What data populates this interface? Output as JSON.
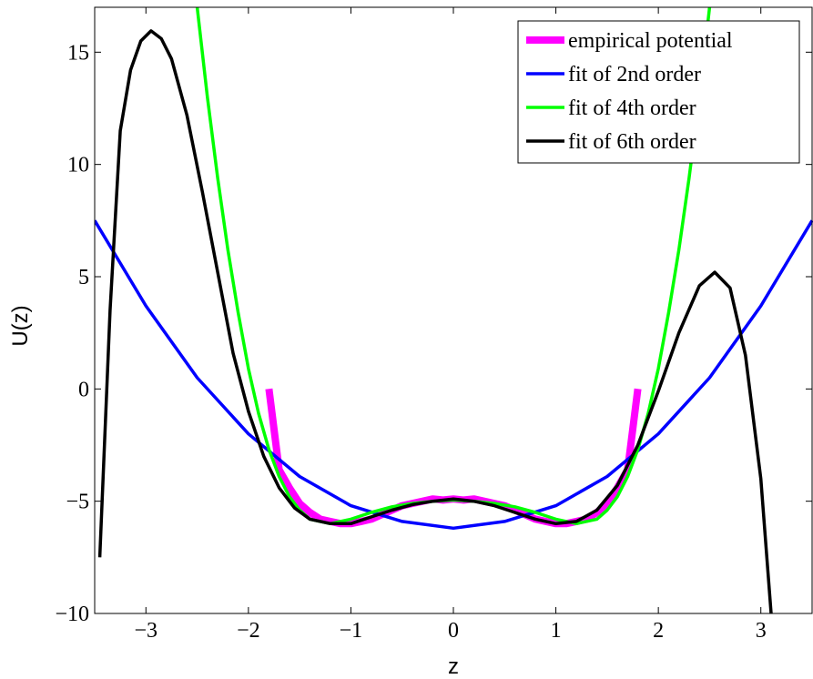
{
  "chart_data": {
    "type": "line",
    "xlabel": "z",
    "ylabel": "U(z)",
    "xlim": [
      -3.5,
      3.5
    ],
    "ylim": [
      -10,
      17
    ],
    "xticks": [
      -3,
      -2,
      -1,
      0,
      1,
      2,
      3
    ],
    "xtick_labels": [
      "−3",
      "−2",
      "−1",
      "0",
      "1",
      "2",
      "3"
    ],
    "yticks": [
      -10,
      -5,
      0,
      5,
      10,
      15
    ],
    "ytick_labels": [
      "−10",
      "−5",
      "0",
      "5",
      "10",
      "15"
    ],
    "grid": false,
    "legend_position": "top-right",
    "series": [
      {
        "name": "empirical potential",
        "color": "#ff00ff",
        "x": [
          -1.8,
          -1.7,
          -1.6,
          -1.5,
          -1.4,
          -1.3,
          -1.2,
          -1.1,
          -1.0,
          -0.9,
          -0.8,
          -0.7,
          -0.6,
          -0.5,
          -0.4,
          -0.3,
          -0.2,
          -0.1,
          0.0,
          0.1,
          0.2,
          0.3,
          0.4,
          0.5,
          0.6,
          0.7,
          0.8,
          0.9,
          1.0,
          1.1,
          1.2,
          1.3,
          1.4,
          1.5,
          1.6,
          1.7,
          1.8
        ],
        "y": [
          0.0,
          -3.6,
          -4.4,
          -5.1,
          -5.5,
          -5.8,
          -5.9,
          -6.0,
          -6.0,
          -5.9,
          -5.8,
          -5.6,
          -5.4,
          -5.2,
          -5.1,
          -5.0,
          -4.9,
          -4.95,
          -4.9,
          -4.95,
          -4.9,
          -5.0,
          -5.1,
          -5.2,
          -5.4,
          -5.6,
          -5.8,
          -5.9,
          -6.0,
          -6.0,
          -5.9,
          -5.8,
          -5.5,
          -5.1,
          -4.4,
          -3.6,
          0.0
        ]
      },
      {
        "name": "fit of 2nd order",
        "color": "#0000ff",
        "x": [
          -3.5,
          -3.0,
          -2.5,
          -2.0,
          -1.5,
          -1.0,
          -0.5,
          0.0,
          0.5,
          1.0,
          1.5,
          2.0,
          2.5,
          3.0,
          3.5
        ],
        "y": [
          7.5,
          3.7,
          0.5,
          -2.0,
          -3.9,
          -5.2,
          -5.9,
          -6.2,
          -5.9,
          -5.2,
          -3.9,
          -2.0,
          0.5,
          3.7,
          7.5
        ]
      },
      {
        "name": "fit of 4th order",
        "color": "#00ff00",
        "x": [
          -2.5,
          -2.4,
          -2.3,
          -2.2,
          -2.1,
          -2.0,
          -1.9,
          -1.8,
          -1.7,
          -1.6,
          -1.5,
          -1.4,
          -1.2,
          -1.0,
          -0.8,
          -0.6,
          -0.4,
          -0.2,
          0.0,
          0.2,
          0.4,
          0.6,
          0.8,
          1.0,
          1.2,
          1.4,
          1.5,
          1.6,
          1.7,
          1.8,
          1.9,
          2.0,
          2.1,
          2.2,
          2.3,
          2.4,
          2.5
        ],
        "y": [
          17.0,
          13.0,
          9.4,
          6.2,
          3.4,
          0.9,
          -1.1,
          -2.7,
          -3.9,
          -4.8,
          -5.4,
          -5.8,
          -6.0,
          -5.8,
          -5.5,
          -5.25,
          -5.1,
          -5.0,
          -4.95,
          -5.0,
          -5.1,
          -5.25,
          -5.5,
          -5.8,
          -6.0,
          -5.8,
          -5.4,
          -4.8,
          -3.9,
          -2.7,
          -1.1,
          0.9,
          3.4,
          6.2,
          9.4,
          13.0,
          17.0
        ]
      },
      {
        "name": "fit of 6th order",
        "color": "#000000",
        "x": [
          -3.45,
          -3.35,
          -3.25,
          -3.15,
          -3.05,
          -2.95,
          -2.85,
          -2.75,
          -2.6,
          -2.45,
          -2.3,
          -2.15,
          -2.0,
          -1.85,
          -1.7,
          -1.55,
          -1.4,
          -1.2,
          -1.0,
          -0.8,
          -0.6,
          -0.4,
          -0.2,
          0.0,
          0.2,
          0.4,
          0.6,
          0.8,
          1.0,
          1.2,
          1.4,
          1.6,
          1.8,
          2.0,
          2.2,
          2.4,
          2.55,
          2.7,
          2.85,
          3.0,
          3.1
        ],
        "y": [
          -7.5,
          3.5,
          11.5,
          14.2,
          15.5,
          15.95,
          15.6,
          14.7,
          12.2,
          8.8,
          5.2,
          1.6,
          -1.0,
          -3.0,
          -4.4,
          -5.3,
          -5.8,
          -6.0,
          -6.0,
          -5.7,
          -5.4,
          -5.15,
          -5.0,
          -4.9,
          -5.0,
          -5.2,
          -5.5,
          -5.8,
          -6.0,
          -5.9,
          -5.4,
          -4.3,
          -2.5,
          -0.1,
          2.5,
          4.6,
          5.2,
          4.5,
          1.5,
          -4.0,
          -10.0
        ]
      }
    ]
  }
}
